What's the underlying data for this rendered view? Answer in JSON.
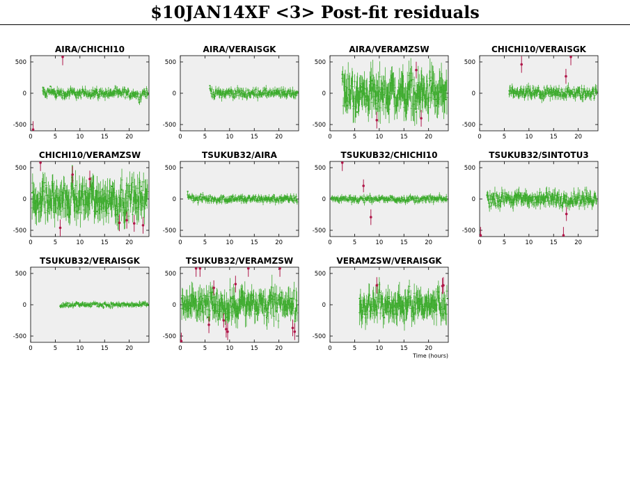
{
  "title": "$10JAN14XF <3> Post-fit residuals",
  "colors": {
    "good": "#3aaa2a",
    "bad": "#b0184a",
    "panel_bg": "#efefef"
  },
  "chart_data": [
    {
      "type": "scatter",
      "title": "AIRA/CHICHI10",
      "x_range": [
        0,
        24
      ],
      "ylim": [
        -600,
        600
      ],
      "yticks": [
        500,
        0,
        -500
      ],
      "xticks": [
        0,
        5,
        10,
        15,
        20
      ],
      "data_start_hour": 2.5,
      "data_end_hour": 23.8,
      "good_scatter": 55,
      "good_points": [
        [
          2.5,
          90
        ],
        [
          3.0,
          -60
        ],
        [
          3.5,
          20
        ],
        [
          4.0,
          110
        ],
        [
          5.0,
          -30
        ],
        [
          6.0,
          30
        ],
        [
          7.0,
          -60
        ],
        [
          8.0,
          40
        ],
        [
          9.0,
          10
        ],
        [
          10.0,
          -40
        ],
        [
          11.0,
          20
        ],
        [
          12.0,
          -10
        ],
        [
          13.0,
          30
        ],
        [
          14.0,
          -20
        ],
        [
          15.0,
          10
        ],
        [
          16.0,
          -30
        ],
        [
          17.0,
          40
        ],
        [
          18.0,
          -10
        ],
        [
          19.0,
          20
        ],
        [
          20.0,
          -50
        ],
        [
          21.0,
          10
        ],
        [
          22.0,
          -150
        ],
        [
          23.0,
          30
        ],
        [
          23.8,
          -20
        ]
      ],
      "outliers": [
        [
          0.5,
          -580
        ],
        [
          6.5,
          580
        ]
      ]
    },
    {
      "type": "scatter",
      "title": "AIRA/VERAISGK",
      "x_range": [
        0,
        24
      ],
      "ylim": [
        -600,
        600
      ],
      "yticks": [
        500,
        0,
        -500
      ],
      "xticks": [
        0,
        5,
        10,
        15,
        20
      ],
      "data_start_hour": 6.0,
      "data_end_hour": 23.8,
      "good_scatter": 55,
      "good_points": [
        [
          6.0,
          120
        ],
        [
          7.0,
          -40
        ],
        [
          8.0,
          30
        ],
        [
          9.0,
          -20
        ],
        [
          10.0,
          40
        ],
        [
          11.0,
          -10
        ],
        [
          12.0,
          20
        ],
        [
          13.0,
          -30
        ],
        [
          14.0,
          10
        ],
        [
          15.0,
          -20
        ],
        [
          16.0,
          30
        ],
        [
          17.0,
          -10
        ],
        [
          18.0,
          20
        ],
        [
          19.0,
          -30
        ],
        [
          20.0,
          10
        ],
        [
          21.0,
          -20
        ],
        [
          22.0,
          30
        ],
        [
          23.0,
          -10
        ],
        [
          23.8,
          20
        ]
      ],
      "outliers": []
    },
    {
      "type": "scatter",
      "title": "AIRA/VERAMZSW",
      "x_range": [
        0,
        24
      ],
      "ylim": [
        -600,
        600
      ],
      "yticks": [
        500,
        0,
        -500
      ],
      "xticks": [
        0,
        5,
        10,
        15,
        20
      ],
      "data_start_hour": 2.5,
      "data_end_hour": 23.8,
      "good_scatter": 230,
      "good_points": [
        [
          2.5,
          300
        ],
        [
          3.5,
          -200
        ],
        [
          4.5,
          200
        ],
        [
          5.5,
          -300
        ],
        [
          6.5,
          100
        ],
        [
          7.5,
          -100
        ],
        [
          8.5,
          200
        ],
        [
          9.5,
          -250
        ],
        [
          10.5,
          150
        ],
        [
          11.5,
          -150
        ],
        [
          12.5,
          250
        ],
        [
          13.5,
          -200
        ],
        [
          14.5,
          100
        ],
        [
          15.5,
          -100
        ],
        [
          16.5,
          200
        ],
        [
          17.5,
          -300
        ],
        [
          18.5,
          150
        ],
        [
          19.5,
          -150
        ],
        [
          20.5,
          200
        ],
        [
          21.5,
          -200
        ],
        [
          22.5,
          100
        ],
        [
          23.5,
          -100
        ]
      ],
      "outliers": [
        [
          9.5,
          -430
        ],
        [
          17.5,
          370
        ],
        [
          18.5,
          -400
        ]
      ]
    },
    {
      "type": "scatter",
      "title": "CHICHI10/VERAISGK",
      "x_range": [
        0,
        24
      ],
      "ylim": [
        -600,
        600
      ],
      "yticks": [
        500,
        0,
        -500
      ],
      "xticks": [
        0,
        5,
        10,
        15,
        20
      ],
      "data_start_hour": 6.0,
      "data_end_hour": 23.8,
      "good_scatter": 70,
      "good_points": [
        [
          6.0,
          40
        ],
        [
          7.0,
          -60
        ],
        [
          8.0,
          20
        ],
        [
          9.0,
          -30
        ],
        [
          10.0,
          50
        ],
        [
          11.0,
          -20
        ],
        [
          12.0,
          30
        ],
        [
          13.0,
          -40
        ],
        [
          14.0,
          10
        ],
        [
          15.0,
          -20
        ],
        [
          16.0,
          40
        ],
        [
          17.0,
          -10
        ],
        [
          18.0,
          20
        ],
        [
          19.0,
          -30
        ],
        [
          20.0,
          10
        ],
        [
          21.0,
          -20
        ],
        [
          22.0,
          30
        ],
        [
          23.0,
          -10
        ],
        [
          23.8,
          20
        ]
      ],
      "outliers": [
        [
          8.5,
          460
        ],
        [
          17.5,
          270
        ],
        [
          18.5,
          580
        ]
      ]
    },
    {
      "type": "scatter",
      "title": "CHICHI10/VERAMZSW",
      "x_range": [
        0,
        24
      ],
      "ylim": [
        -600,
        600
      ],
      "yticks": [
        500,
        0,
        -500
      ],
      "xticks": [
        0,
        5,
        10,
        15,
        20
      ],
      "data_start_hour": 0.3,
      "data_end_hour": 23.8,
      "good_scatter": 210,
      "good_points": [
        [
          0.3,
          100
        ],
        [
          1.5,
          -100
        ],
        [
          2.5,
          200
        ],
        [
          3.5,
          -200
        ],
        [
          4.5,
          150
        ],
        [
          5.5,
          -150
        ],
        [
          6.5,
          100
        ],
        [
          7.5,
          -250
        ],
        [
          8.5,
          300
        ],
        [
          9.5,
          -200
        ],
        [
          10.5,
          150
        ],
        [
          11.5,
          -100
        ],
        [
          12.5,
          250
        ],
        [
          13.5,
          -200
        ],
        [
          14.5,
          150
        ],
        [
          15.5,
          -150
        ],
        [
          16.5,
          200
        ],
        [
          17.5,
          -250
        ],
        [
          18.5,
          150
        ],
        [
          19.5,
          -200
        ],
        [
          20.5,
          100
        ],
        [
          21.5,
          -150
        ],
        [
          22.5,
          200
        ],
        [
          23.5,
          -100
        ]
      ],
      "outliers": [
        [
          2.0,
          580
        ],
        [
          6.0,
          -460
        ],
        [
          8.5,
          390
        ],
        [
          12.0,
          320
        ],
        [
          18.0,
          -380
        ],
        [
          19.5,
          -340
        ],
        [
          21.0,
          -390
        ],
        [
          22.8,
          -420
        ]
      ]
    },
    {
      "type": "scatter",
      "title": "TSUKUB32/AIRA",
      "x_range": [
        0,
        24
      ],
      "ylim": [
        -600,
        600
      ],
      "yticks": [
        500,
        0,
        -500
      ],
      "xticks": [
        0,
        5,
        10,
        15,
        20
      ],
      "data_start_hour": 1.5,
      "data_end_hour": 23.8,
      "good_scatter": 45,
      "good_points": [
        [
          1.5,
          120
        ],
        [
          2.5,
          60
        ],
        [
          3.5,
          -20
        ],
        [
          4.5,
          30
        ],
        [
          5.5,
          -10
        ],
        [
          6.5,
          20
        ],
        [
          7.5,
          -30
        ],
        [
          8.5,
          10
        ],
        [
          9.5,
          -20
        ],
        [
          10.5,
          30
        ],
        [
          11.5,
          -10
        ],
        [
          12.5,
          20
        ],
        [
          13.5,
          -30
        ],
        [
          14.5,
          10
        ],
        [
          15.5,
          -20
        ],
        [
          16.5,
          20
        ],
        [
          17.5,
          -10
        ],
        [
          18.5,
          10
        ],
        [
          19.5,
          -20
        ],
        [
          20.5,
          20
        ],
        [
          21.5,
          -10
        ],
        [
          22.5,
          10
        ],
        [
          23.5,
          -20
        ]
      ],
      "outliers": []
    },
    {
      "type": "scatter",
      "title": "TSUKUB32/CHICHI10",
      "x_range": [
        0,
        24
      ],
      "ylim": [
        -600,
        600
      ],
      "yticks": [
        500,
        0,
        -500
      ],
      "xticks": [
        0,
        5,
        10,
        15,
        20
      ],
      "data_start_hour": 0.3,
      "data_end_hour": 23.8,
      "good_scatter": 40,
      "good_points": [
        [
          0.3,
          20
        ],
        [
          1.5,
          -20
        ],
        [
          2.5,
          30
        ],
        [
          3.5,
          -10
        ],
        [
          4.5,
          20
        ],
        [
          5.5,
          -30
        ],
        [
          6.5,
          10
        ],
        [
          7.5,
          -20
        ],
        [
          8.5,
          20
        ],
        [
          9.5,
          -10
        ],
        [
          10.5,
          10
        ],
        [
          11.5,
          -20
        ],
        [
          12.5,
          20
        ],
        [
          13.5,
          -10
        ],
        [
          14.5,
          10
        ],
        [
          15.5,
          -20
        ],
        [
          16.5,
          20
        ],
        [
          17.5,
          -30
        ],
        [
          18.5,
          10
        ],
        [
          19.5,
          -10
        ],
        [
          20.5,
          20
        ],
        [
          21.5,
          -10
        ],
        [
          22.5,
          10
        ],
        [
          23.5,
          -20
        ]
      ],
      "outliers": [
        [
          2.5,
          580
        ],
        [
          6.8,
          210
        ],
        [
          8.3,
          -290
        ]
      ]
    },
    {
      "type": "scatter",
      "title": "TSUKUB32/SINTOTU3",
      "x_range": [
        0,
        24
      ],
      "ylim": [
        -600,
        600
      ],
      "yticks": [
        500,
        0,
        -500
      ],
      "xticks": [
        0,
        5,
        10,
        15,
        20
      ],
      "data_start_hour": 1.5,
      "data_end_hour": 23.8,
      "good_scatter": 90,
      "good_points": [
        [
          1.5,
          60
        ],
        [
          2.5,
          -60
        ],
        [
          3.5,
          50
        ],
        [
          4.5,
          -40
        ],
        [
          5.5,
          70
        ],
        [
          6.5,
          -50
        ],
        [
          7.5,
          40
        ],
        [
          8.5,
          -30
        ],
        [
          9.5,
          50
        ],
        [
          10.5,
          -40
        ],
        [
          11.5,
          30
        ],
        [
          12.5,
          -50
        ],
        [
          13.5,
          40
        ],
        [
          14.5,
          -30
        ],
        [
          15.5,
          60
        ],
        [
          16.5,
          -100
        ],
        [
          17.5,
          50
        ],
        [
          18.5,
          -40
        ],
        [
          19.5,
          30
        ],
        [
          20.5,
          -50
        ],
        [
          21.5,
          40
        ],
        [
          22.5,
          -30
        ],
        [
          23.5,
          20
        ]
      ],
      "outliers": [
        [
          0.2,
          -580
        ],
        [
          17.0,
          -580
        ],
        [
          17.6,
          -240
        ]
      ]
    },
    {
      "type": "scatter",
      "title": "TSUKUB32/VERAISGK",
      "x_range": [
        0,
        24
      ],
      "ylim": [
        -600,
        600
      ],
      "yticks": [
        500,
        0,
        -500
      ],
      "xticks": [
        0,
        5,
        10,
        15,
        20
      ],
      "data_start_hour": 6.0,
      "data_end_hour": 23.8,
      "good_scatter": 30,
      "good_points": [
        [
          6.0,
          -20
        ],
        [
          7.0,
          10
        ],
        [
          8.0,
          -10
        ],
        [
          9.0,
          20
        ],
        [
          10.0,
          -10
        ],
        [
          11.0,
          30
        ],
        [
          12.0,
          -20
        ],
        [
          13.0,
          10
        ],
        [
          14.0,
          -10
        ],
        [
          15.0,
          20
        ],
        [
          16.0,
          -20
        ],
        [
          17.0,
          10
        ],
        [
          18.0,
          -10
        ],
        [
          19.0,
          20
        ],
        [
          20.0,
          -10
        ],
        [
          21.0,
          10
        ],
        [
          22.0,
          -20
        ],
        [
          23.0,
          20
        ],
        [
          23.8,
          -10
        ]
      ],
      "outliers": []
    },
    {
      "type": "scatter",
      "title": "TSUKUB32/VERAMZSW",
      "x_range": [
        0,
        24
      ],
      "ylim": [
        -600,
        600
      ],
      "yticks": [
        500,
        0,
        -500
      ],
      "xticks": [
        0,
        5,
        10,
        15,
        20
      ],
      "data_start_hour": 0.3,
      "data_end_hour": 23.8,
      "good_scatter": 170,
      "good_points": [
        [
          0.3,
          100
        ],
        [
          1.5,
          -100
        ],
        [
          2.5,
          150
        ],
        [
          3.5,
          -150
        ],
        [
          4.5,
          100
        ],
        [
          5.5,
          -200
        ],
        [
          6.5,
          200
        ],
        [
          7.5,
          -100
        ],
        [
          8.5,
          150
        ],
        [
          9.5,
          -200
        ],
        [
          10.5,
          100
        ],
        [
          11.5,
          -150
        ],
        [
          12.5,
          200
        ],
        [
          13.5,
          -100
        ],
        [
          14.5,
          150
        ],
        [
          15.5,
          -150
        ],
        [
          16.5,
          100
        ],
        [
          17.5,
          -200
        ],
        [
          18.5,
          150
        ],
        [
          19.5,
          -100
        ],
        [
          20.5,
          200
        ],
        [
          21.5,
          -150
        ],
        [
          22.5,
          100
        ],
        [
          23.5,
          -100
        ]
      ],
      "outliers": [
        [
          0.2,
          -580
        ],
        [
          3.2,
          580
        ],
        [
          4.0,
          580
        ],
        [
          5.8,
          -320
        ],
        [
          6.8,
          270
        ],
        [
          8.8,
          -250
        ],
        [
          9.3,
          -390
        ],
        [
          9.6,
          -430
        ],
        [
          11.2,
          330
        ],
        [
          13.8,
          580
        ],
        [
          20.2,
          580
        ],
        [
          22.8,
          -370
        ],
        [
          23.2,
          -430
        ]
      ]
    },
    {
      "type": "scatter",
      "title": "VERAMZSW/VERAISGK",
      "x_range": [
        0,
        24
      ],
      "ylim": [
        -600,
        600
      ],
      "yticks": [
        500,
        0,
        -500
      ],
      "xticks": [
        0,
        5,
        10,
        15,
        20
      ],
      "data_start_hour": 6.0,
      "data_end_hour": 23.8,
      "good_scatter": 170,
      "good_points": [
        [
          6.0,
          100
        ],
        [
          7.0,
          -150
        ],
        [
          8.0,
          150
        ],
        [
          9.0,
          -100
        ],
        [
          10.0,
          200
        ],
        [
          11.0,
          -200
        ],
        [
          12.0,
          100
        ],
        [
          13.0,
          -150
        ],
        [
          14.0,
          150
        ],
        [
          15.0,
          -100
        ],
        [
          16.0,
          200
        ],
        [
          17.0,
          -150
        ],
        [
          18.0,
          100
        ],
        [
          19.0,
          -200
        ],
        [
          20.0,
          150
        ],
        [
          21.0,
          -100
        ],
        [
          22.0,
          200
        ],
        [
          23.0,
          -150
        ],
        [
          23.8,
          100
        ]
      ],
      "outliers": [
        [
          9.5,
          310
        ],
        [
          22.8,
          300
        ],
        [
          23.0,
          310
        ]
      ],
      "xlabel": "Time (hours)"
    }
  ]
}
